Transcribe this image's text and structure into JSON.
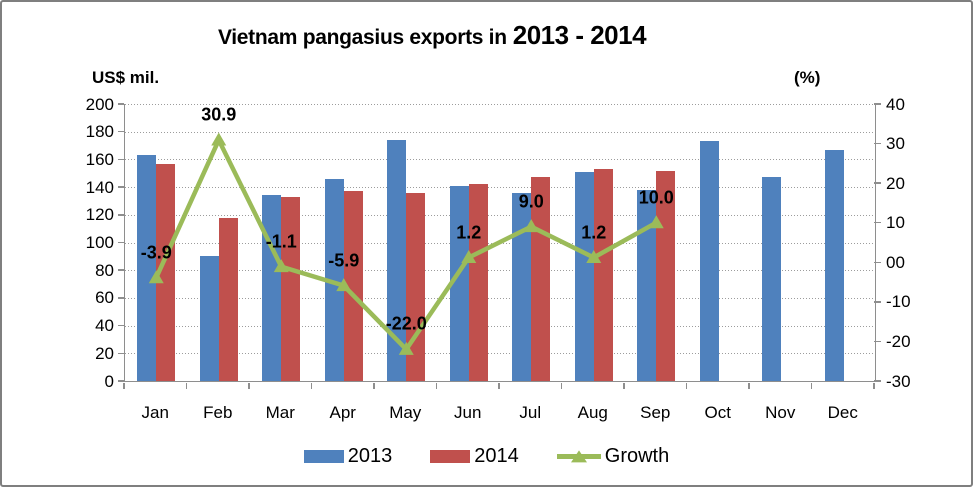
{
  "title": {
    "main": "Vietnam pangasius exports in",
    "years": "2013 - 2014"
  },
  "chart_data": {
    "type": "bar+line",
    "title": "Vietnam pangasius exports in 2013 - 2014",
    "categories": [
      "Jan",
      "Feb",
      "Mar",
      "Apr",
      "May",
      "Jun",
      "Jul",
      "Aug",
      "Sep",
      "Oct",
      "Nov",
      "Dec"
    ],
    "series": [
      {
        "name": "2013",
        "type": "bar",
        "axis": "left",
        "color": "#4F81BD",
        "values": [
          163,
          90,
          134.5,
          146,
          174,
          140.5,
          135.5,
          151,
          138,
          173,
          147.5,
          167
        ]
      },
      {
        "name": "2014",
        "type": "bar",
        "axis": "left",
        "color": "#C0504D",
        "values": [
          157,
          118,
          133,
          137.5,
          135.5,
          142,
          147.5,
          153,
          151.5,
          null,
          null,
          null
        ]
      },
      {
        "name": "Growth",
        "type": "line",
        "axis": "right",
        "color": "#9BBB59",
        "values": [
          -3.9,
          30.9,
          -1.1,
          -5.9,
          -22.0,
          1.2,
          9.0,
          1.2,
          10.0,
          null,
          null,
          null
        ],
        "point_labels": [
          "-3.9",
          "30.9",
          "-1.1",
          "-5.9",
          "-22.0",
          "1.2",
          "9.0",
          "1.2",
          "10.0",
          null,
          null,
          null
        ]
      }
    ],
    "left_axis": {
      "unit_label": "US$ mil.",
      "min": 0,
      "max": 200,
      "step": 20,
      "ticks": [
        "200",
        "180",
        "160",
        "140",
        "120",
        "100",
        "80",
        "60",
        "40",
        "20",
        "0"
      ]
    },
    "right_axis": {
      "unit_label": "(%)",
      "min": -30,
      "max": 40,
      "step": 10,
      "ticks": [
        "40",
        "30",
        "20",
        "10",
        "00",
        "-10",
        "-20",
        "-30"
      ]
    },
    "grid": "horizontal-dotted",
    "legend": {
      "position": "bottom",
      "items": [
        {
          "label": "2013",
          "type": "bar",
          "color": "#4F81BD"
        },
        {
          "label": "2014",
          "type": "bar",
          "color": "#C0504D"
        },
        {
          "label": "Growth",
          "type": "line",
          "color": "#9BBB59"
        }
      ]
    }
  }
}
